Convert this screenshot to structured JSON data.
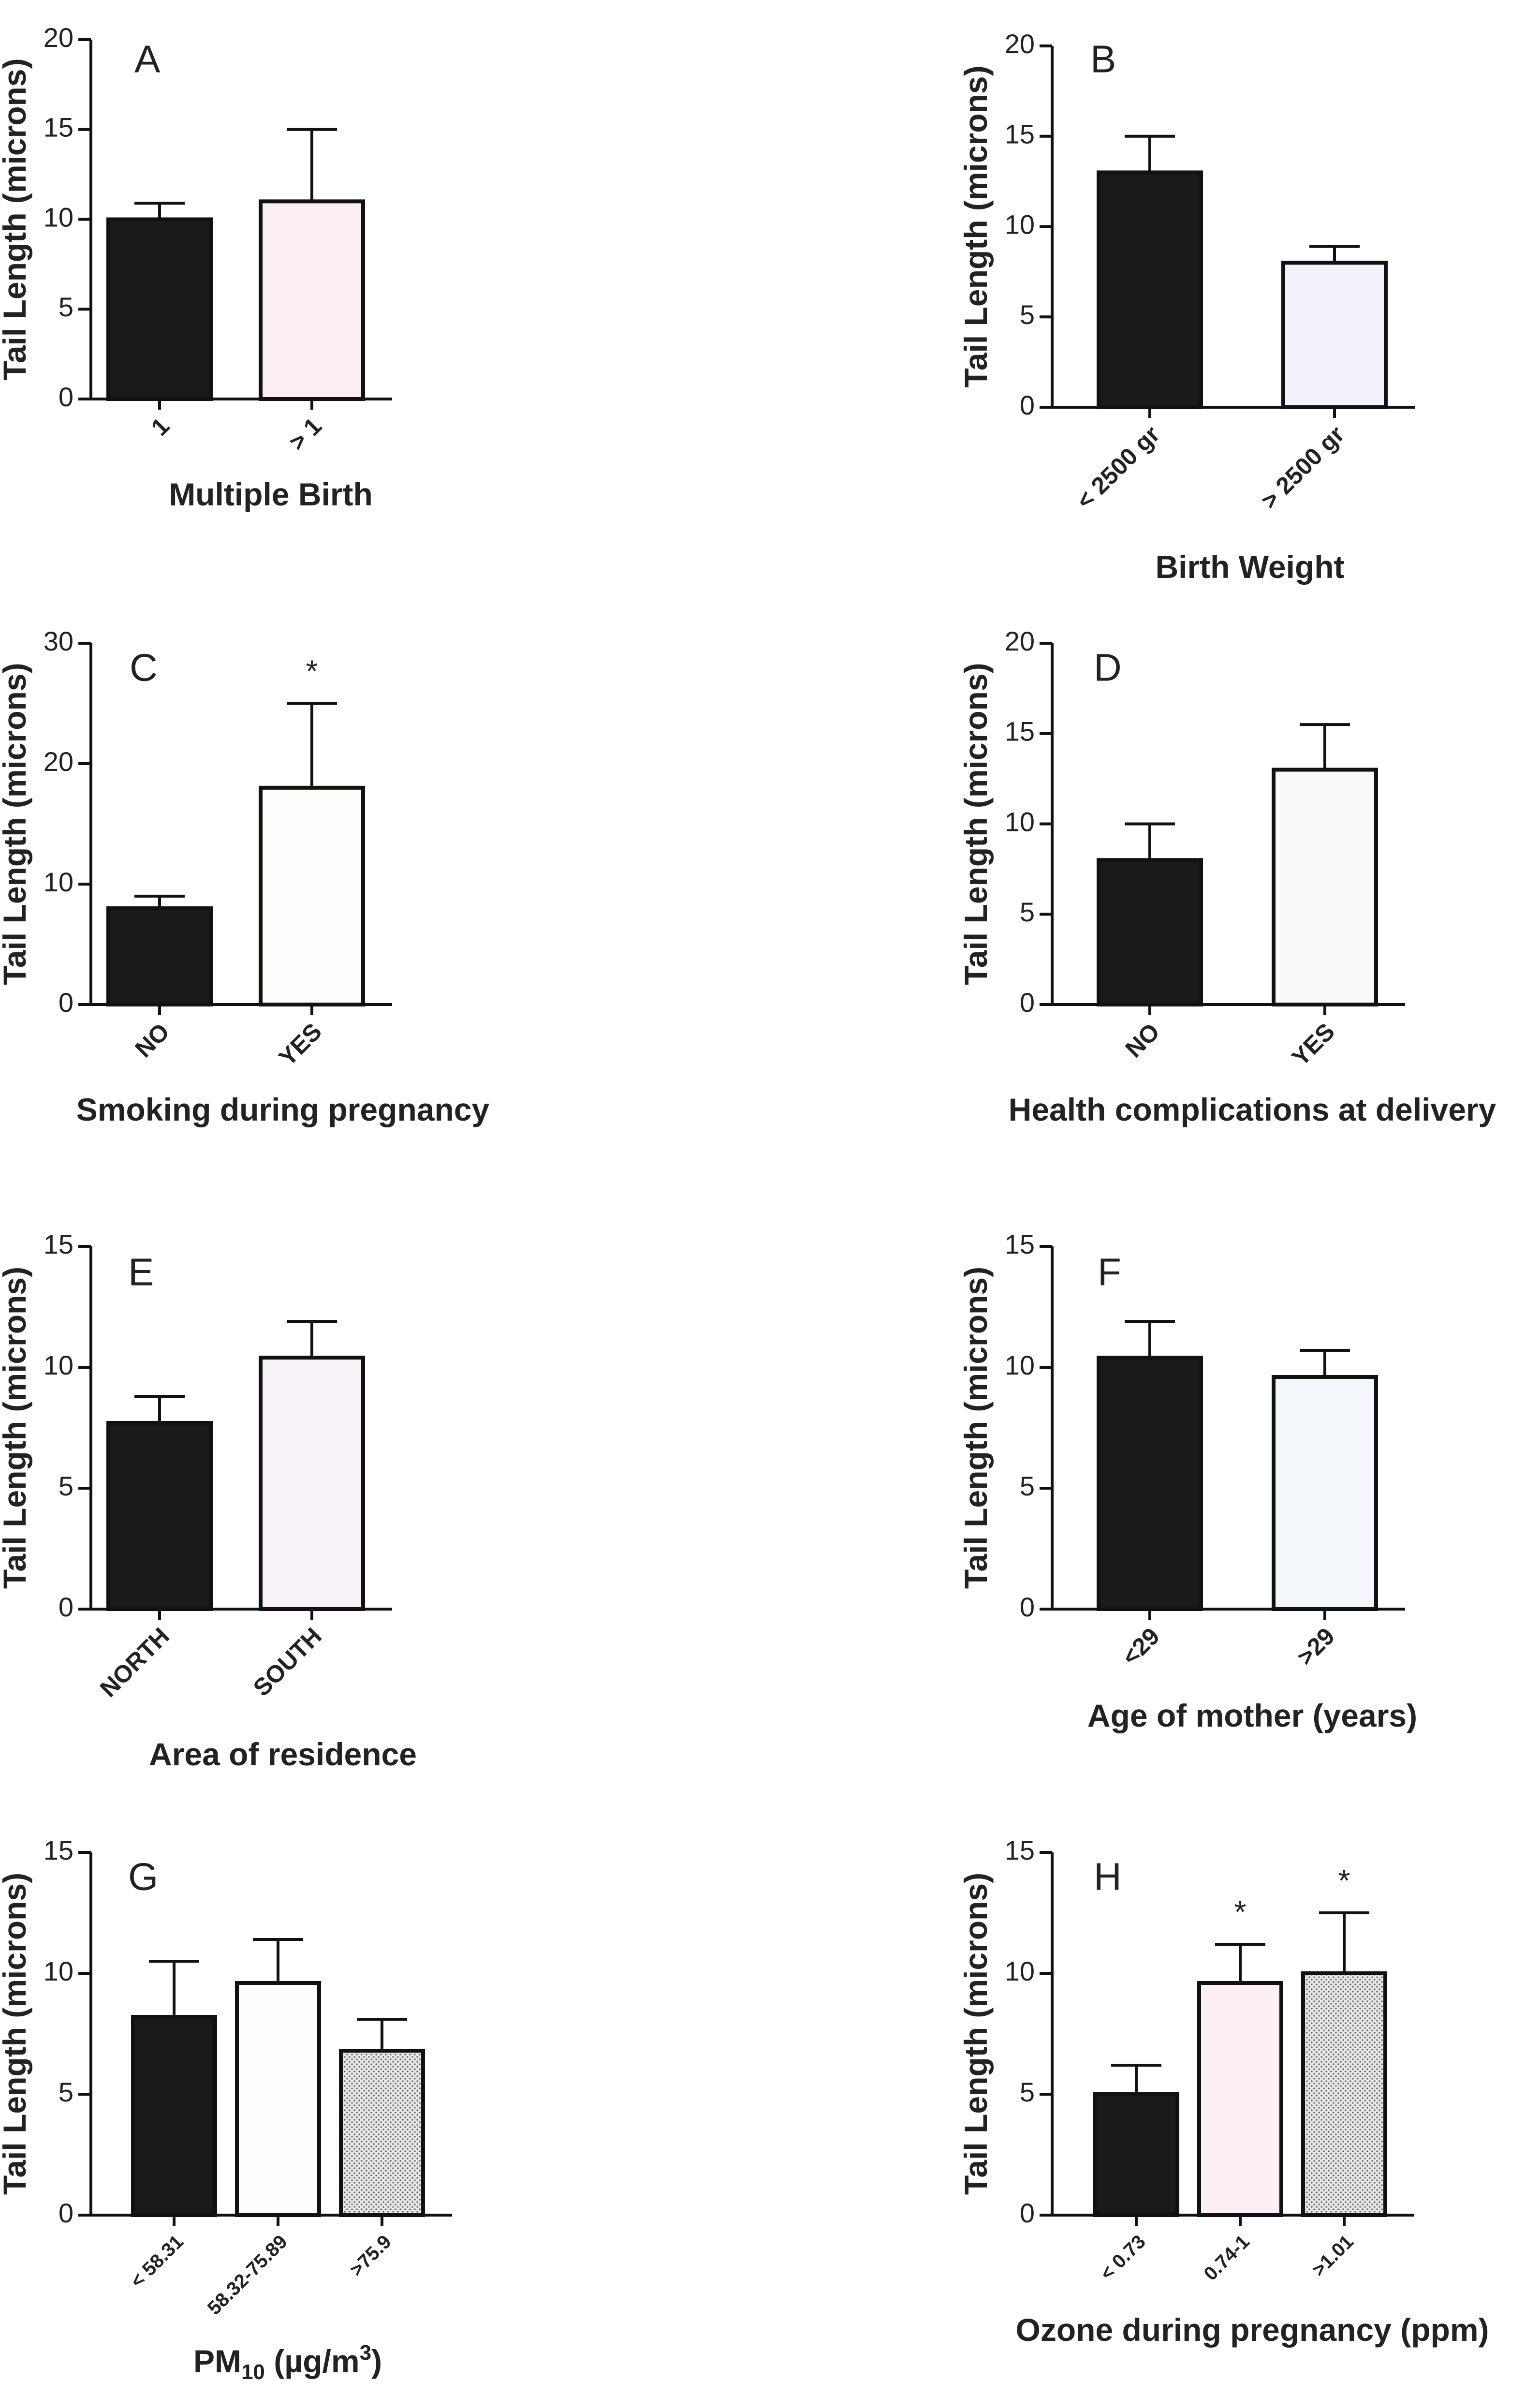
{
  "chart_data": [
    {
      "id": "A",
      "type": "bar",
      "panel_label": "A",
      "title": "",
      "xlabel": "Multiple Birth",
      "ylabel": "Tail Length (microns)",
      "ylim": [
        0,
        20
      ],
      "yticks": [
        0,
        5,
        10,
        15,
        20
      ],
      "categories": [
        "1",
        "> 1"
      ],
      "values": [
        10,
        11
      ],
      "errors": [
        0.9,
        4
      ],
      "fills": [
        "#1a1a1a",
        "#fbeff3"
      ],
      "significance": [
        "",
        ""
      ]
    },
    {
      "id": "B",
      "type": "bar",
      "panel_label": "B",
      "title": "",
      "xlabel": "Birth Weight",
      "ylabel": "Tail Length (microns)",
      "ylim": [
        0,
        20
      ],
      "yticks": [
        0,
        5,
        10,
        15,
        20
      ],
      "categories": [
        "< 2500 gr",
        "> 2500 gr"
      ],
      "values": [
        13,
        8
      ],
      "errors": [
        2,
        0.9
      ],
      "fills": [
        "#1a1a1a",
        "#f3f1f9"
      ],
      "significance": [
        "",
        ""
      ]
    },
    {
      "id": "C",
      "type": "bar",
      "panel_label": "C",
      "title": "",
      "xlabel": "Smoking during pregnancy",
      "ylabel": "Tail Length (microns)",
      "ylim": [
        0,
        30
      ],
      "yticks": [
        0,
        10,
        20,
        30
      ],
      "categories": [
        "NO",
        "YES"
      ],
      "values": [
        8,
        18
      ],
      "errors": [
        1,
        7
      ],
      "fills": [
        "#1a1a1a",
        "#fdfdfb"
      ],
      "significance": [
        "",
        "*"
      ]
    },
    {
      "id": "D",
      "type": "bar",
      "panel_label": "D",
      "title": "",
      "xlabel": "Health complications at delivery",
      "ylabel": "Tail Length (microns)",
      "ylim": [
        0,
        20
      ],
      "yticks": [
        0,
        5,
        10,
        15,
        20
      ],
      "categories": [
        "NO",
        "YES"
      ],
      "values": [
        8,
        13
      ],
      "errors": [
        2,
        2.5
      ],
      "fills": [
        "#1a1a1a",
        "#fcf9fb"
      ],
      "significance": [
        "",
        ""
      ]
    },
    {
      "id": "E",
      "type": "bar",
      "panel_label": "E",
      "title": "",
      "xlabel": "Area of residence",
      "ylabel": "Tail Length (microns)",
      "ylim": [
        0,
        15
      ],
      "yticks": [
        0,
        5,
        10,
        15
      ],
      "categories": [
        "NORTH",
        "SOUTH"
      ],
      "values": [
        7.7,
        10.4
      ],
      "errors": [
        1.1,
        1.5
      ],
      "fills": [
        "#1a1a1a",
        "#f8f1f7"
      ],
      "significance": [
        "",
        ""
      ]
    },
    {
      "id": "F",
      "type": "bar",
      "panel_label": "F",
      "title": "",
      "xlabel": "Age of mother (years)",
      "ylabel": "Tail Length (microns)",
      "ylim": [
        0,
        15
      ],
      "yticks": [
        0,
        5,
        10,
        15
      ],
      "categories": [
        "<29",
        ">29"
      ],
      "values": [
        10.4,
        9.6
      ],
      "errors": [
        1.5,
        1.1
      ],
      "fills": [
        "#1a1a1a",
        "#f3f7fb"
      ],
      "significance": [
        "",
        ""
      ]
    },
    {
      "id": "G",
      "type": "bar",
      "panel_label": "G",
      "title": "",
      "xlabel": "PM",
      "xlabel_sub": "10",
      "xlabel_unit_pre": " (µg/m",
      "xlabel_sup": "3",
      "xlabel_unit_post": ")",
      "ylabel": "Tail Length (microns)",
      "ylim": [
        0,
        15
      ],
      "yticks": [
        0,
        5,
        10,
        15
      ],
      "categories": [
        "< 58.31",
        "58.32-75.89",
        ">75.9"
      ],
      "values": [
        8.2,
        9.6,
        6.8
      ],
      "errors": [
        2.3,
        1.8,
        1.3
      ],
      "fills": [
        "#1a1a1a",
        "#fdfdfd",
        "#d9d9d9"
      ],
      "significance": [
        "",
        "",
        ""
      ]
    },
    {
      "id": "H",
      "type": "bar",
      "panel_label": "H",
      "title": "",
      "xlabel": "Ozone during pregnancy (ppm)",
      "ylabel": "Tail Length (microns)",
      "ylim": [
        0,
        15
      ],
      "yticks": [
        0,
        5,
        10,
        15
      ],
      "categories": [
        "< 0.73",
        "0.74-1",
        ">1.01"
      ],
      "values": [
        5,
        9.6,
        10
      ],
      "errors": [
        1.2,
        1.6,
        2.5
      ],
      "fills": [
        "#1a1a1a",
        "#fbeef4",
        "#d9d9d9"
      ],
      "significance": [
        "",
        "*",
        "*"
      ]
    }
  ]
}
